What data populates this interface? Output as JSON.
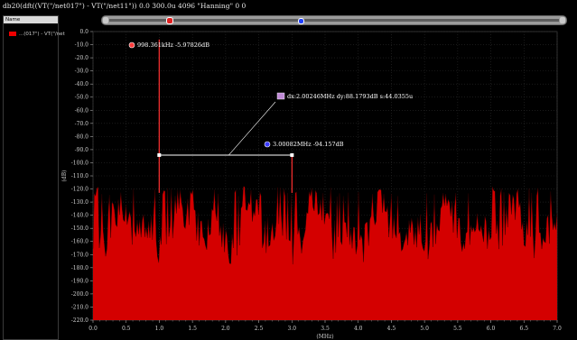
{
  "window": {
    "title": "db20(dft((VT(\"/net017\") - VT(\"/net11\")) 0.0 300.0u 4096 \"Hanning\" 0 0"
  },
  "legend": {
    "header": "Name",
    "items": [
      {
        "label": "...(017\") - VT(\"/net",
        "color": "#ee0000"
      }
    ]
  },
  "chart_data": {
    "type": "line",
    "title": "",
    "xlabel": "(MHz)",
    "ylabel": "(dB)",
    "xlim": [
      0.0,
      7.0
    ],
    "ylim": [
      -220.0,
      0.0
    ],
    "x_ticks": [
      "0.0",
      "0.5",
      "1.0",
      "1.5",
      "2.0",
      "2.5",
      "3.0",
      "3.5",
      "4.0",
      "4.5",
      "5.0",
      "5.5",
      "6.0",
      "6.5",
      "7.0"
    ],
    "y_ticks": [
      "0.0",
      "-10.0",
      "-20.0",
      "-30.0",
      "-40.0",
      "-50.0",
      "-60.0",
      "-70.0",
      "-80.0",
      "-90.0",
      "-100.0",
      "-110.0",
      "-120.0",
      "-130.0",
      "-140.0",
      "-150.0",
      "-160.0",
      "-170.0",
      "-180.0",
      "-190.0",
      "-200.0",
      "-210.0",
      "-220.0"
    ],
    "series": [
      {
        "color": "#ee0000",
        "fill": "#d40000",
        "floor_db": -220.0,
        "noise_band_db": [
          -158.0,
          -118.0
        ],
        "peaks": [
          {
            "x": 0.998361,
            "y": -5.97826
          },
          {
            "x": 3.00082,
            "y": -94.157
          }
        ]
      }
    ],
    "grid": true,
    "markers": [
      {
        "label": "998.361kHz -5.97826dB",
        "x": 0.998361,
        "y": -5.97826
      },
      {
        "label": "3.00082MHz -94.157dB",
        "x": 3.00082,
        "y": -94.157
      }
    ],
    "delta": {
      "label": "dx:2.00246MHz dy:88.1793dB s:44.0355u"
    }
  }
}
